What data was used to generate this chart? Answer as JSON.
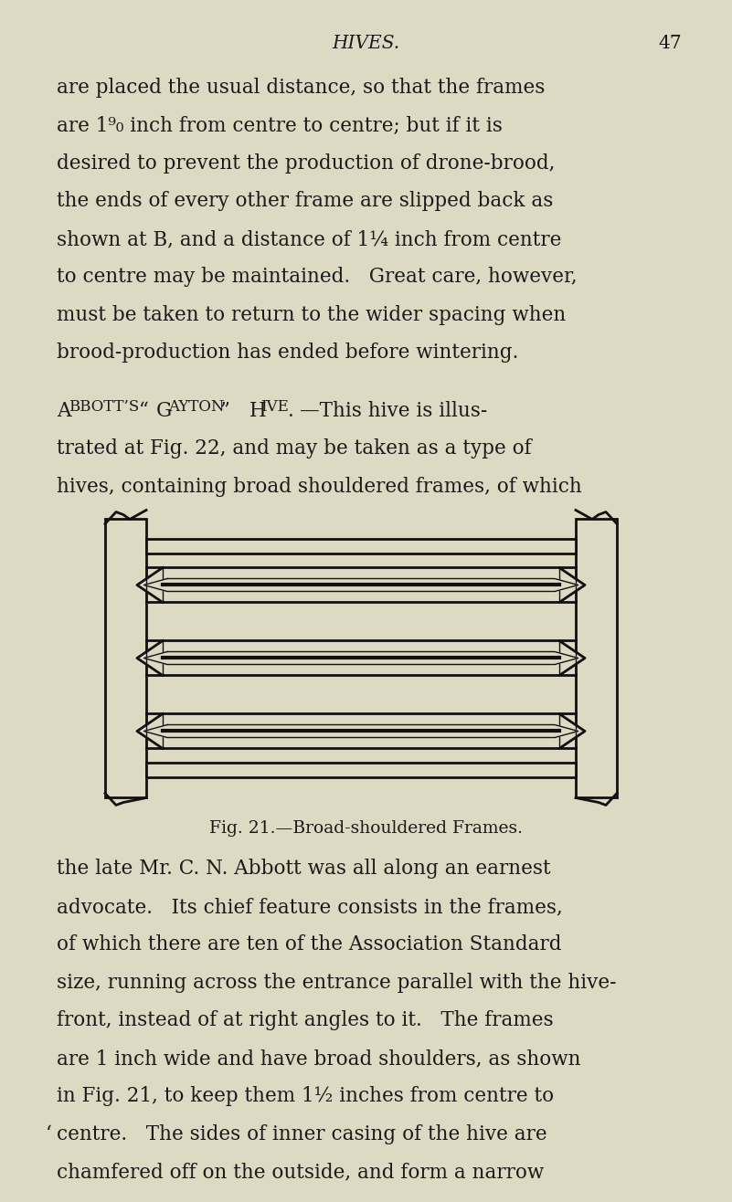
{
  "bg_color": "#ddd9c3",
  "text_color": "#1a1a1a",
  "page_width": 8.01,
  "page_height": 13.16,
  "header_title": "HIVES.",
  "header_page": "47",
  "p1_lines": [
    "are placed the usual distance, so that the frames",
    "are 1⁹₀ inch from centre to centre; but if it is",
    "desired to prevent the production of drone-brood,",
    "the ends of every other frame are slipped back as",
    "shown at B, and a distance of 1¼ inch from centre",
    "to centre may be maintained.   Great care, however,",
    "must be taken to return to the wider spacing when",
    "brood-production has ended before wintering."
  ],
  "p2_lines": [
    "trated at Fig. 22, and may be taken as a type of",
    "hives, containing broad shouldered frames, of which"
  ],
  "fig_caption": "Fig. 21.—Broad-shouldered Frames.",
  "p3_lines": [
    "the late Mr. C. N. Abbott was all along an earnest",
    "advocate.   Its chief feature consists in the frames,",
    "of which there are ten of the Association Standard",
    "size, running across the entrance parallel with the hive-",
    "front, instead of at right angles to it.   The frames",
    "are 1 inch wide and have broad shoulders, as shown",
    "in Fig. 21, to keep them 1½ inches from centre to",
    "‘centre.   The sides of inner casing of the hive are",
    "chamfered off on the outside, and form a narrow"
  ]
}
